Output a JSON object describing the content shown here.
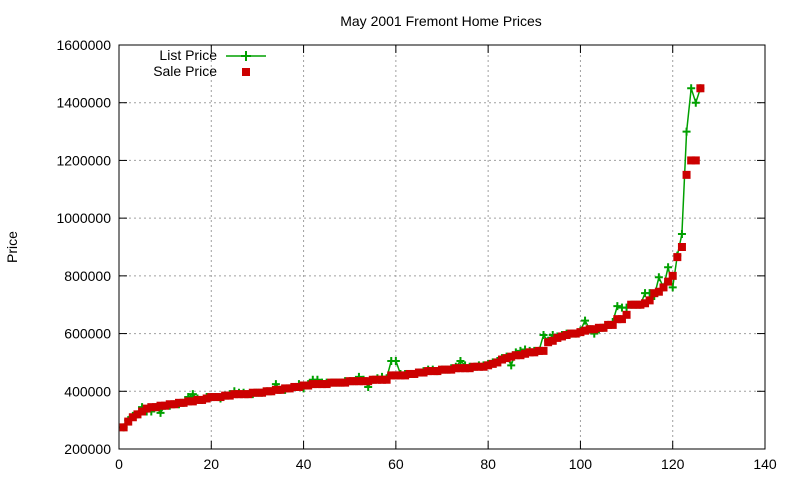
{
  "chart_data": {
    "type": "scatter",
    "title": "May 2001 Fremont Home Prices",
    "xlabel": "",
    "ylabel": "Price",
    "xlim": [
      0,
      140
    ],
    "ylim": [
      200000,
      1600000
    ],
    "x_ticks": [
      "0",
      "20",
      "40",
      "60",
      "80",
      "100",
      "120",
      "140"
    ],
    "y_ticks": [
      "200000",
      "400000",
      "600000",
      "800000",
      "1000000",
      "1200000",
      "1400000",
      "1600000"
    ],
    "grid": true,
    "legend": "top-left",
    "series": [
      {
        "name": "List Price",
        "style": "line-with-plus-markers",
        "color": "#00a000",
        "points": [
          [
            1,
            275000
          ],
          [
            2,
            300000
          ],
          [
            3,
            315000
          ],
          [
            4,
            320000
          ],
          [
            5,
            345000
          ],
          [
            6,
            330000
          ],
          [
            7,
            330000
          ],
          [
            8,
            345000
          ],
          [
            9,
            325000
          ],
          [
            10,
            350000
          ],
          [
            11,
            350000
          ],
          [
            12,
            355000
          ],
          [
            13,
            355000
          ],
          [
            14,
            360000
          ],
          [
            15,
            380000
          ],
          [
            16,
            390000
          ],
          [
            17,
            375000
          ],
          [
            18,
            370000
          ],
          [
            19,
            380000
          ],
          [
            20,
            380000
          ],
          [
            21,
            380000
          ],
          [
            22,
            375000
          ],
          [
            23,
            385000
          ],
          [
            24,
            390000
          ],
          [
            25,
            400000
          ],
          [
            26,
            395000
          ],
          [
            27,
            395000
          ],
          [
            28,
            390000
          ],
          [
            29,
            390000
          ],
          [
            30,
            395000
          ],
          [
            31,
            395000
          ],
          [
            32,
            400000
          ],
          [
            33,
            400000
          ],
          [
            34,
            425000
          ],
          [
            35,
            405000
          ],
          [
            36,
            405000
          ],
          [
            37,
            410000
          ],
          [
            38,
            415000
          ],
          [
            39,
            425000
          ],
          [
            40,
            410000
          ],
          [
            41,
            425000
          ],
          [
            42,
            440000
          ],
          [
            43,
            440000
          ],
          [
            44,
            430000
          ],
          [
            45,
            430000
          ],
          [
            46,
            430000
          ],
          [
            47,
            430000
          ],
          [
            48,
            430000
          ],
          [
            49,
            435000
          ],
          [
            50,
            435000
          ],
          [
            51,
            435000
          ],
          [
            52,
            450000
          ],
          [
            53,
            440000
          ],
          [
            54,
            415000
          ],
          [
            55,
            440000
          ],
          [
            56,
            445000
          ],
          [
            57,
            450000
          ],
          [
            58,
            445000
          ],
          [
            59,
            505000
          ],
          [
            60,
            505000
          ],
          [
            61,
            460000
          ],
          [
            62,
            460000
          ],
          [
            63,
            460000
          ],
          [
            64,
            460000
          ],
          [
            65,
            465000
          ],
          [
            66,
            470000
          ],
          [
            67,
            475000
          ],
          [
            68,
            475000
          ],
          [
            69,
            470000
          ],
          [
            70,
            475000
          ],
          [
            71,
            475000
          ],
          [
            72,
            480000
          ],
          [
            73,
            485000
          ],
          [
            74,
            505000
          ],
          [
            75,
            490000
          ],
          [
            76,
            485000
          ],
          [
            77,
            485000
          ],
          [
            78,
            490000
          ],
          [
            79,
            490000
          ],
          [
            80,
            495000
          ],
          [
            81,
            500000
          ],
          [
            82,
            505000
          ],
          [
            83,
            515000
          ],
          [
            84,
            520000
          ],
          [
            85,
            490000
          ],
          [
            86,
            535000
          ],
          [
            87,
            540000
          ],
          [
            88,
            545000
          ],
          [
            89,
            540000
          ],
          [
            90,
            540000
          ],
          [
            91,
            540000
          ],
          [
            92,
            595000
          ],
          [
            93,
            575000
          ],
          [
            94,
            595000
          ],
          [
            95,
            590000
          ],
          [
            96,
            595000
          ],
          [
            97,
            600000
          ],
          [
            98,
            600000
          ],
          [
            99,
            600000
          ],
          [
            100,
            610000
          ],
          [
            101,
            645000
          ],
          [
            102,
            615000
          ],
          [
            103,
            600000
          ],
          [
            104,
            615000
          ],
          [
            105,
            620000
          ],
          [
            106,
            630000
          ],
          [
            107,
            640000
          ],
          [
            108,
            695000
          ],
          [
            109,
            690000
          ],
          [
            110,
            690000
          ],
          [
            111,
            700000
          ],
          [
            112,
            700000
          ],
          [
            113,
            700000
          ],
          [
            114,
            740000
          ],
          [
            115,
            740000
          ],
          [
            116,
            730000
          ],
          [
            117,
            795000
          ],
          [
            118,
            760000
          ],
          [
            119,
            830000
          ],
          [
            120,
            760000
          ],
          [
            121,
            870000
          ],
          [
            122,
            945000
          ],
          [
            123,
            1300000
          ],
          [
            124,
            1450000
          ],
          [
            125,
            1400000
          ],
          [
            126,
            1450000
          ]
        ]
      },
      {
        "name": "Sale Price",
        "style": "square-markers",
        "color": "#cc0000",
        "points": [
          [
            1,
            275000
          ],
          [
            2,
            295000
          ],
          [
            3,
            310000
          ],
          [
            4,
            320000
          ],
          [
            5,
            330000
          ],
          [
            6,
            340000
          ],
          [
            7,
            345000
          ],
          [
            8,
            345000
          ],
          [
            9,
            350000
          ],
          [
            10,
            350000
          ],
          [
            11,
            355000
          ],
          [
            12,
            355000
          ],
          [
            13,
            360000
          ],
          [
            14,
            360000
          ],
          [
            15,
            365000
          ],
          [
            16,
            365000
          ],
          [
            17,
            370000
          ],
          [
            18,
            370000
          ],
          [
            19,
            375000
          ],
          [
            20,
            380000
          ],
          [
            21,
            380000
          ],
          [
            22,
            380000
          ],
          [
            23,
            385000
          ],
          [
            24,
            385000
          ],
          [
            25,
            390000
          ],
          [
            26,
            390000
          ],
          [
            27,
            390000
          ],
          [
            28,
            390000
          ],
          [
            29,
            395000
          ],
          [
            30,
            395000
          ],
          [
            31,
            395000
          ],
          [
            32,
            400000
          ],
          [
            33,
            400000
          ],
          [
            34,
            405000
          ],
          [
            35,
            405000
          ],
          [
            36,
            410000
          ],
          [
            37,
            410000
          ],
          [
            38,
            415000
          ],
          [
            39,
            415000
          ],
          [
            40,
            420000
          ],
          [
            41,
            420000
          ],
          [
            42,
            425000
          ],
          [
            43,
            425000
          ],
          [
            44,
            425000
          ],
          [
            45,
            425000
          ],
          [
            46,
            430000
          ],
          [
            47,
            430000
          ],
          [
            48,
            430000
          ],
          [
            49,
            430000
          ],
          [
            50,
            435000
          ],
          [
            51,
            435000
          ],
          [
            52,
            435000
          ],
          [
            53,
            435000
          ],
          [
            54,
            435000
          ],
          [
            55,
            440000
          ],
          [
            56,
            440000
          ],
          [
            57,
            440000
          ],
          [
            58,
            440000
          ],
          [
            59,
            455000
          ],
          [
            60,
            455000
          ],
          [
            61,
            455000
          ],
          [
            62,
            455000
          ],
          [
            63,
            460000
          ],
          [
            64,
            460000
          ],
          [
            65,
            465000
          ],
          [
            66,
            465000
          ],
          [
            67,
            470000
          ],
          [
            68,
            470000
          ],
          [
            69,
            470000
          ],
          [
            70,
            475000
          ],
          [
            71,
            475000
          ],
          [
            72,
            475000
          ],
          [
            73,
            480000
          ],
          [
            74,
            480000
          ],
          [
            75,
            480000
          ],
          [
            76,
            480000
          ],
          [
            77,
            485000
          ],
          [
            78,
            485000
          ],
          [
            79,
            485000
          ],
          [
            80,
            490000
          ],
          [
            81,
            495000
          ],
          [
            82,
            500000
          ],
          [
            83,
            510000
          ],
          [
            84,
            515000
          ],
          [
            85,
            520000
          ],
          [
            86,
            525000
          ],
          [
            87,
            525000
          ],
          [
            88,
            530000
          ],
          [
            89,
            535000
          ],
          [
            90,
            535000
          ],
          [
            91,
            540000
          ],
          [
            92,
            540000
          ],
          [
            93,
            570000
          ],
          [
            94,
            575000
          ],
          [
            95,
            585000
          ],
          [
            96,
            590000
          ],
          [
            97,
            595000
          ],
          [
            98,
            600000
          ],
          [
            99,
            600000
          ],
          [
            100,
            605000
          ],
          [
            101,
            610000
          ],
          [
            102,
            615000
          ],
          [
            103,
            615000
          ],
          [
            104,
            620000
          ],
          [
            105,
            620000
          ],
          [
            106,
            630000
          ],
          [
            107,
            630000
          ],
          [
            108,
            650000
          ],
          [
            109,
            650000
          ],
          [
            110,
            665000
          ],
          [
            111,
            700000
          ],
          [
            112,
            700000
          ],
          [
            113,
            700000
          ],
          [
            114,
            705000
          ],
          [
            115,
            715000
          ],
          [
            116,
            740000
          ],
          [
            117,
            745000
          ],
          [
            118,
            760000
          ],
          [
            119,
            780000
          ],
          [
            120,
            800000
          ],
          [
            121,
            865000
          ],
          [
            122,
            900000
          ],
          [
            123,
            1150000
          ],
          [
            124,
            1200000
          ],
          [
            125,
            1200000
          ],
          [
            126,
            1450000
          ]
        ]
      }
    ]
  }
}
